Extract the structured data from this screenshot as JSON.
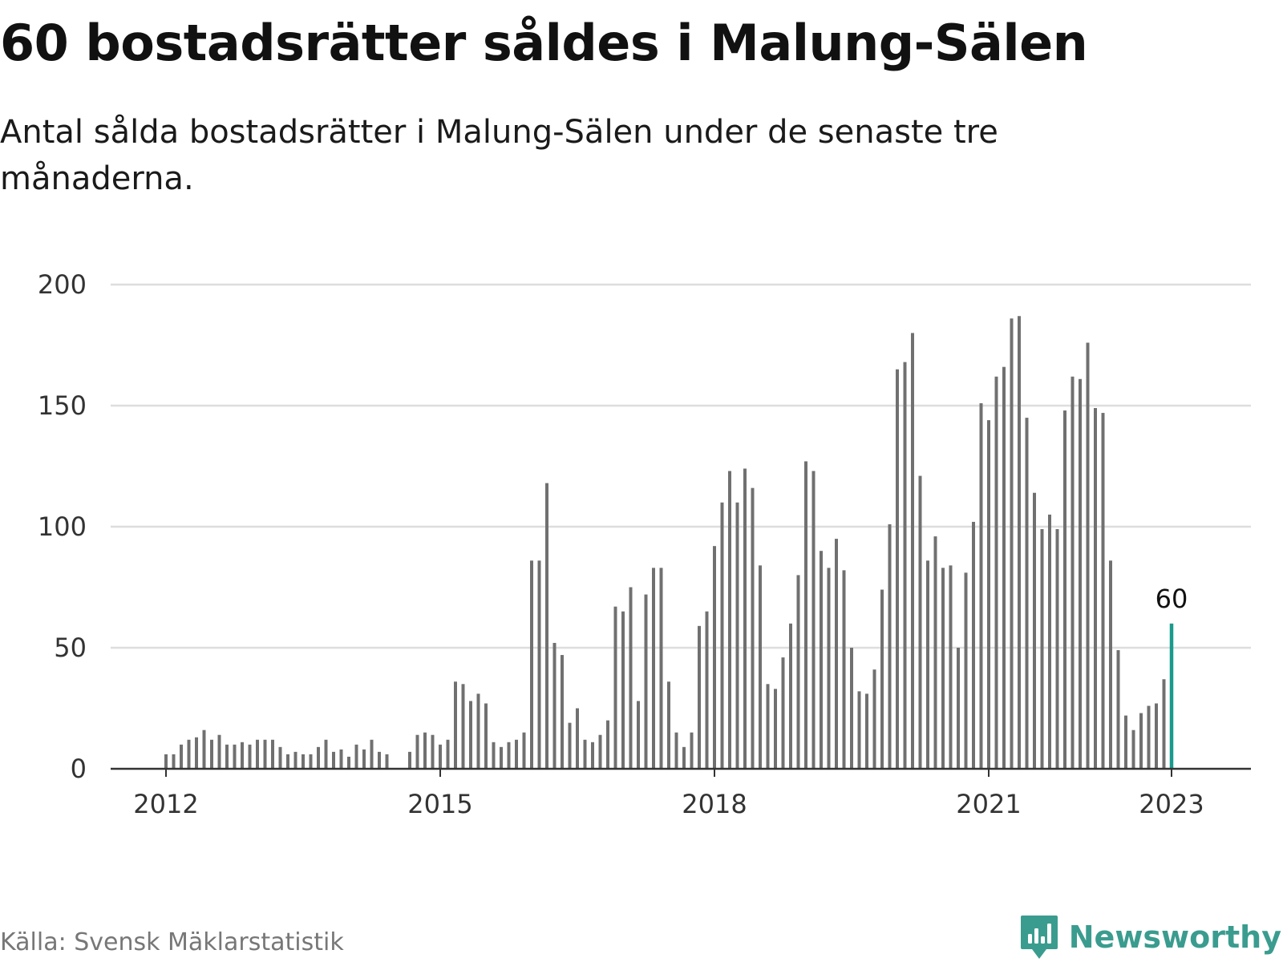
{
  "title": "60 bostadsrätter såldes i Malung-Sälen",
  "subtitle": "Antal sålda bostadsrätter i Malung-Sälen under de senaste tre månaderna.",
  "source": "Källa: Svensk Mäklarstatistik",
  "brand": "Newsworthy",
  "colors": {
    "bar": "#707070",
    "highlight": "#1a9a8c",
    "grid": "#dddddd",
    "axis": "#333333",
    "brand": "#3a9c8f"
  },
  "chart_data": {
    "type": "bar",
    "x_unit": "month",
    "start": "2012-01",
    "end": "2023-01",
    "ylim": [
      0,
      200
    ],
    "yticks": [
      0,
      50,
      100,
      150,
      200
    ],
    "xticks": [
      "2012",
      "2015",
      "2018",
      "2021",
      "2023"
    ],
    "grid": true,
    "values": [
      6,
      6,
      10,
      12,
      13,
      16,
      12,
      14,
      10,
      10,
      11,
      10,
      12,
      12,
      12,
      9,
      6,
      7,
      6,
      6,
      9,
      12,
      7,
      8,
      5,
      10,
      8,
      12,
      7,
      6,
      0,
      0,
      7,
      14,
      15,
      14,
      10,
      12,
      36,
      35,
      28,
      31,
      27,
      11,
      9,
      11,
      12,
      15,
      86,
      86,
      118,
      52,
      47,
      19,
      25,
      12,
      11,
      14,
      20,
      67,
      65,
      75,
      28,
      72,
      83,
      83,
      36,
      15,
      9,
      15,
      59,
      65,
      92,
      110,
      123,
      110,
      124,
      116,
      84,
      35,
      33,
      46,
      60,
      80,
      127,
      123,
      90,
      83,
      95,
      82,
      50,
      32,
      31,
      41,
      74,
      101,
      165,
      168,
      180,
      121,
      86,
      96,
      83,
      84,
      50,
      81,
      102,
      151,
      144,
      162,
      166,
      186,
      187,
      145,
      114,
      99,
      105,
      99,
      148,
      162,
      161,
      176,
      149,
      147,
      86,
      49,
      22,
      16,
      23,
      26,
      27,
      37,
      60
    ],
    "highlight_last": true,
    "last_value_label": "60"
  }
}
